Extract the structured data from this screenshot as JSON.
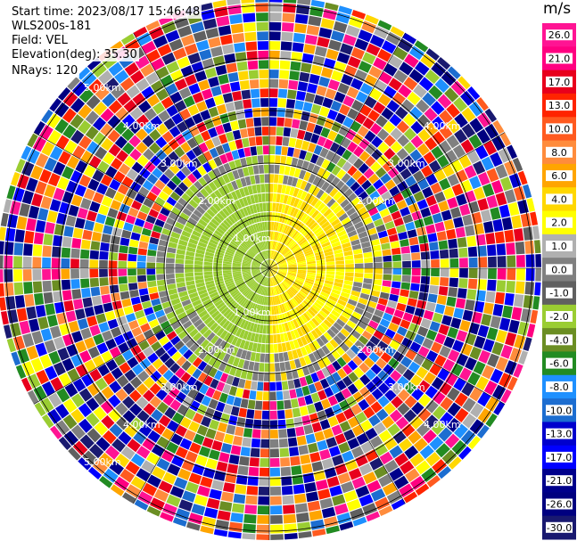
{
  "info": {
    "start_time": "Start time: 2023/08/17 15:46:48",
    "instrument": "WLS200s-181",
    "field": "Field: VEL",
    "elevation": "Elevation(deg): 35.30",
    "nrays": "NRays: 120"
  },
  "chart_data": {
    "type": "heatmap",
    "projection": "polar PPI",
    "colorbar": {
      "unit": "m/s",
      "ticks": [
        "26.0",
        "21.0",
        "17.0",
        "13.0",
        "10.0",
        "8.0",
        "6.0",
        "4.0",
        "2.0",
        "1.0",
        "0.0",
        "-1.0",
        "-2.0",
        "-4.0",
        "-6.0",
        "-8.0",
        "-10.0",
        "-13.0",
        "-17.0",
        "-21.0",
        "-26.0",
        "-30.0"
      ],
      "colors": [
        "#ff1493",
        "#ff0080",
        "#e8001c",
        "#ff2400",
        "#ff5a1f",
        "#ff8c3c",
        "#ffa500",
        "#ffd700",
        "#ffff00",
        "#b0b0b0",
        "#808080",
        "#606060",
        "#9acd32",
        "#6b8e23",
        "#228b22",
        "#1e90ff",
        "#1c6dd0",
        "#0000cd",
        "#0000ff",
        "#00008b",
        "#000080",
        "#191970"
      ]
    },
    "range_rings_km": [
      "1.00km",
      "2.00km",
      "3.00km",
      "4.00km",
      "5.00km"
    ],
    "ring_label_text": {
      "r1_ne": "1.00km",
      "r1_sw": "1.00km",
      "r2_ne": "2.00km",
      "r2_nw": "2.00km",
      "r2_se": "2.00km",
      "r2_sw": "2.00km",
      "r3_ne": "3.00km",
      "r3_nw": "3.00km",
      "r3_se": "3.00km",
      "r3_sw": "3.00km",
      "r4_ne": "4.00km",
      "r4_nw": "4.00km",
      "r4_se": "4.00km",
      "r4_sw": "4.00km",
      "r5_nw": "5.00km",
      "r5_sw": "5.00km"
    },
    "nrays": 120,
    "near_field": {
      "west_velocity": -3.0,
      "east_velocity": 2.0
    },
    "far_field": "noise"
  }
}
